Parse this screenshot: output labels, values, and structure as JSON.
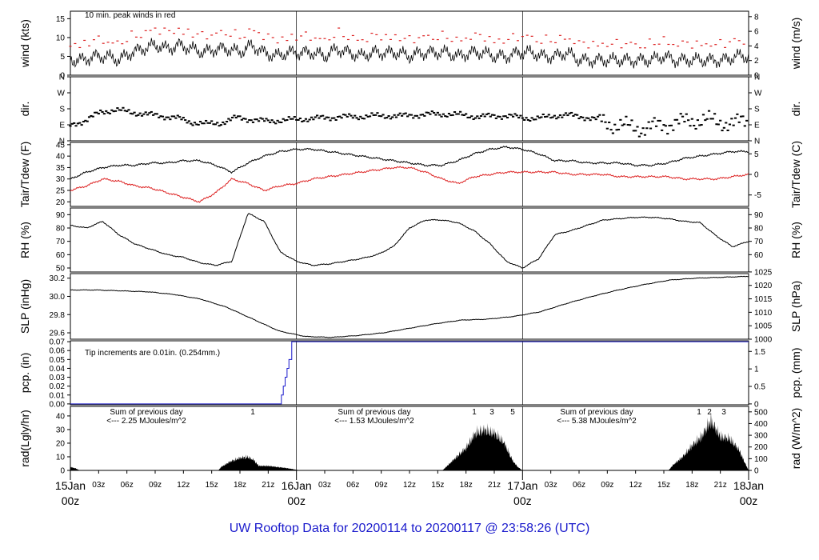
{
  "figure": {
    "caption": "UW Rooftop Data for 20200114  to  20200117 @ 23:58:26  (UTC)",
    "caption_color": "#1a1acc",
    "accent_red": "#dd2222",
    "purple": "#a020f0"
  },
  "chart_data": [
    {
      "panel": "wind",
      "type": "line",
      "ylabel_left": "wind (kts)",
      "ylabel_right": "wind (m/s)",
      "yticks_left": [
        "0",
        "5",
        "10",
        "15"
      ],
      "ylim": [
        0,
        17
      ],
      "yticks_right": [
        "0",
        "2",
        "4",
        "6",
        "8"
      ],
      "annotation": "10 min. peak winds in red",
      "series": [
        {
          "values": [
            4,
            4,
            5,
            5,
            4,
            6,
            7,
            8,
            7,
            8,
            7,
            6,
            7,
            7,
            6,
            8,
            6,
            5,
            6,
            6,
            6,
            5,
            7,
            6,
            5,
            6,
            6,
            6,
            5,
            6,
            6,
            6,
            5,
            6,
            6,
            5,
            5,
            6,
            6,
            5,
            5,
            6,
            4,
            4,
            4,
            4,
            4,
            4,
            4,
            5,
            4,
            4,
            4,
            4,
            4,
            5,
            5
          ]
        }
      ]
    },
    {
      "panel": "dir",
      "type": "scatter",
      "ylabel_left": "dir.",
      "ylabel_right": "dir.",
      "yticks_left": [
        "N",
        "E",
        "S",
        "W",
        "N"
      ],
      "yticks_right": [
        "N",
        "E",
        "S",
        "W",
        "N"
      ],
      "ylim": [
        0,
        360
      ],
      "series": [
        {
          "values": [
            85,
            115,
            160,
            175,
            160,
            150,
            140,
            130,
            105,
            95,
            100,
            130,
            120,
            110,
            115,
            120,
            125,
            130,
            135,
            135,
            140,
            140,
            140,
            145,
            150,
            150,
            145,
            135,
            140,
            140,
            130,
            125,
            140,
            145,
            135,
            120,
            90,
            80,
            70,
            85,
            100,
            110,
            120,
            105,
            100,
            110
          ]
        }
      ]
    },
    {
      "panel": "temperature",
      "type": "line",
      "ylabel_left": "Tair/Tdew (F)",
      "ylabel_right": "Tair/Tdew (C)",
      "yticks_left": [
        "20",
        "25",
        "30",
        "35",
        "40",
        "45"
      ],
      "ylim": [
        18,
        46
      ],
      "yticks_right": [
        "-5",
        "0",
        "5"
      ],
      "series": [
        {
          "values": [
            30,
            33,
            35,
            36,
            36,
            37,
            37,
            38,
            38,
            36,
            33,
            37,
            40,
            42,
            43,
            43,
            42,
            41,
            40,
            39,
            38,
            37,
            36,
            36,
            38,
            41,
            43,
            44,
            43,
            41,
            38,
            38,
            37,
            37,
            37,
            36,
            36,
            37,
            39,
            40,
            41,
            42,
            42
          ]
        },
        {
          "values": [
            25,
            27,
            30,
            29,
            27,
            26,
            24,
            22,
            20,
            24,
            30,
            28,
            25,
            27,
            28,
            30,
            31,
            32,
            33,
            34,
            35,
            35,
            33,
            30,
            28,
            31,
            32,
            33,
            33,
            33,
            33,
            32,
            32,
            32,
            31,
            31,
            31,
            31,
            30,
            30,
            30,
            31,
            32
          ]
        }
      ]
    },
    {
      "panel": "rh",
      "type": "line",
      "ylabel_left": "RH (%)",
      "ylabel_right": "RH (%)",
      "yticks_left": [
        "50",
        "60",
        "70",
        "80",
        "90"
      ],
      "ylim": [
        47,
        95
      ],
      "yticks_right": [
        "60",
        "70",
        "80",
        "90"
      ],
      "series": [
        {
          "values": [
            82,
            80,
            85,
            75,
            68,
            64,
            60,
            58,
            54,
            52,
            55,
            91,
            85,
            62,
            55,
            52,
            53,
            55,
            57,
            60,
            66,
            80,
            86,
            86,
            84,
            78,
            68,
            55,
            50,
            57,
            75,
            78,
            82,
            86,
            87,
            88,
            88,
            87,
            85,
            84,
            74,
            66,
            70
          ]
        }
      ]
    },
    {
      "panel": "slp",
      "type": "line",
      "ylabel_left": "SLP (inHg)",
      "ylabel_right": "SLP (hPa)",
      "yticks_left": [
        "29.6",
        "29.8",
        "30.0",
        "30.2"
      ],
      "ylim": [
        29.53,
        30.25
      ],
      "yticks_right": [
        "1000",
        "1005",
        "1010",
        "1015",
        "1020",
        "1025"
      ],
      "series": [
        {
          "values": [
            30.07,
            30.07,
            30.06,
            30.05,
            30.02,
            29.97,
            29.88,
            29.75,
            29.62,
            29.56,
            29.55,
            29.57,
            29.6,
            29.65,
            29.7,
            29.74,
            29.75,
            29.78,
            29.83,
            29.92,
            30.0,
            30.07,
            30.13,
            30.18,
            30.2,
            30.21,
            30.22
          ]
        }
      ]
    },
    {
      "panel": "pcp",
      "type": "line",
      "ylabel_left": "pcp. (in)",
      "ylabel_right": "pcp. (mm)",
      "yticks_left": [
        "0.00",
        "0.01",
        "0.02",
        "0.03",
        "0.04",
        "0.05",
        "0.06",
        "0.07"
      ],
      "ylim": [
        -0.001,
        0.071
      ],
      "yticks_right": [
        "0",
        "0.5",
        "1",
        "1.5"
      ],
      "annotation": "Tip increments are 0.01in. (0.254mm.)",
      "series": [
        {
          "x": [
            0,
            22.3,
            22.4,
            22.6,
            22.8,
            23.0,
            23.2,
            23.5,
            72
          ],
          "values": [
            0,
            0,
            0.01,
            0.02,
            0.03,
            0.04,
            0.05,
            0.07,
            0.07
          ]
        }
      ]
    },
    {
      "panel": "radiation",
      "type": "area",
      "ylabel_left": "rad(Lgly/hr)",
      "ylabel_right": "rad (W/m^2)",
      "yticks_left": [
        "0",
        "10",
        "20",
        "30",
        "40"
      ],
      "ylim": [
        0,
        47
      ],
      "yticks_right": [
        "0",
        "100",
        "200",
        "300",
        "400",
        "500"
      ],
      "daily_sums": [
        {
          "line1": "Sum of previous day",
          "line2": "<--- 2.25 MJoules/m^2"
        },
        {
          "line1": "Sum of previous day",
          "line2": "<--- 1.53 MJoules/m^2"
        },
        {
          "line1": "Sum of previous day",
          "line2": "<--- 5.38 MJoules/m^2"
        }
      ],
      "peak_marks": [
        "1",
        "1",
        "3",
        "5",
        "1",
        "2",
        "3"
      ],
      "series": [
        {
          "x": [
            0,
            0.5,
            1,
            15.7,
            16,
            17,
            18,
            18.8,
            19.5,
            20,
            21,
            22,
            23,
            23.7,
            24.3,
            39.5,
            40,
            41,
            42,
            43,
            44,
            44.5,
            45,
            46,
            47,
            47.5,
            48,
            63.5,
            64,
            65,
            66,
            67,
            68,
            69,
            70,
            71,
            71.7,
            72
          ],
          "values": [
            3,
            2,
            0,
            0,
            3,
            8,
            11,
            12,
            9,
            4,
            4,
            3,
            2,
            1,
            0,
            0,
            4,
            12,
            20,
            33,
            36,
            34,
            33,
            25,
            8,
            3,
            0,
            0,
            5,
            12,
            22,
            30,
            44,
            30,
            28,
            18,
            5,
            0
          ]
        }
      ]
    },
    {
      "panel": "time_axis",
      "hour_labels": [
        "03z",
        "06z",
        "09z",
        "12z",
        "15z",
        "18z",
        "21z",
        "03z",
        "06z",
        "09z",
        "12z",
        "15z",
        "18z",
        "21z",
        "03z",
        "06z",
        "09z",
        "12z",
        "15z",
        "18z",
        "21z"
      ],
      "day_labels": [
        {
          "day": "15Jan",
          "hour": "00z"
        },
        {
          "day": "16Jan",
          "hour": "00z"
        },
        {
          "day": "17Jan",
          "hour": "00z"
        },
        {
          "day": "18Jan",
          "hour": "00z"
        }
      ]
    }
  ]
}
